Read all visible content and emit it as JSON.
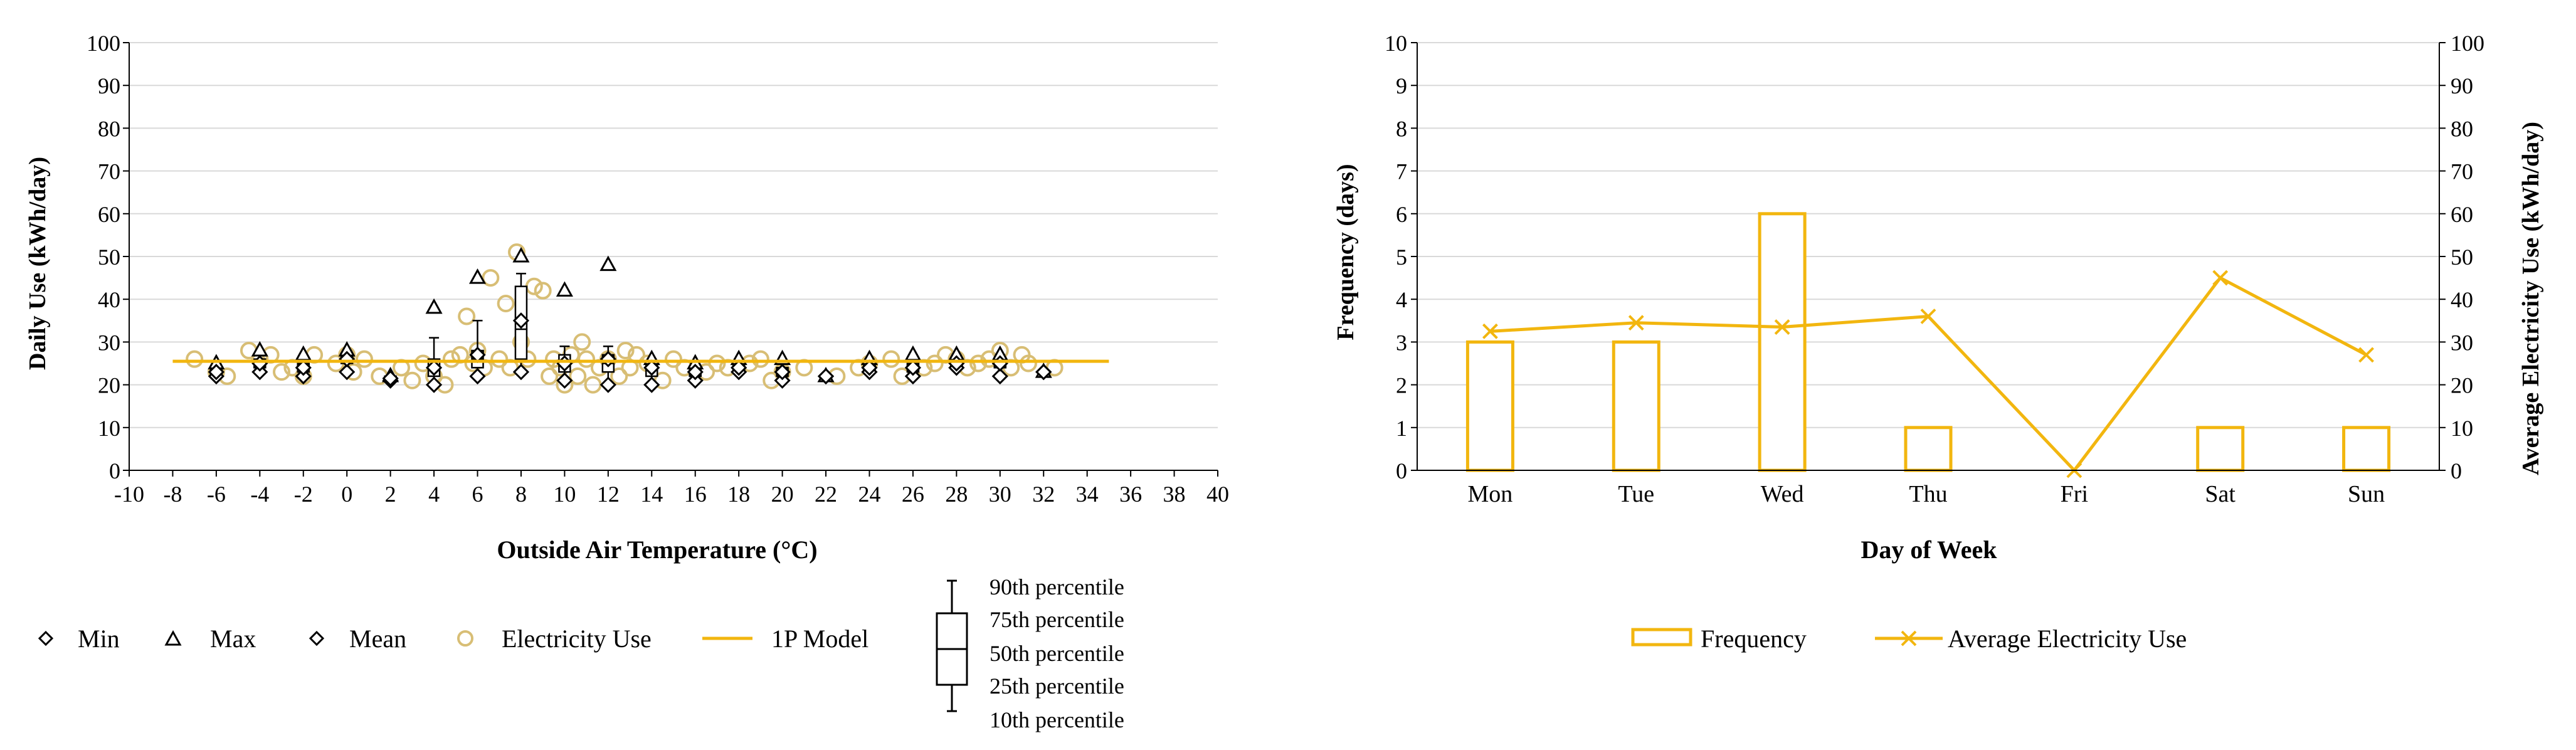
{
  "colors": {
    "accent": "#F2B60F",
    "marker_fill": "#D8BE75",
    "axis": "#000000",
    "grid": "#D9D9D9"
  },
  "chart_data": [
    {
      "type": "scatter",
      "title": "",
      "xlabel": "Outside Air Temperature (°C)",
      "ylabel": "Daily Use (kWh/day)",
      "xlim": [
        -10,
        40
      ],
      "ylim": [
        0,
        100
      ],
      "x_ticks": [
        -10,
        -8,
        -6,
        -4,
        -2,
        0,
        2,
        4,
        6,
        8,
        10,
        12,
        14,
        16,
        18,
        20,
        22,
        24,
        26,
        28,
        30,
        32,
        34,
        36,
        38,
        40
      ],
      "y_ticks": [
        0,
        10,
        20,
        30,
        40,
        50,
        60,
        70,
        80,
        90,
        100
      ],
      "grid": true,
      "legend": {
        "min": "Min",
        "max": "Max",
        "mean": "Mean",
        "electricity": "Electricity Use",
        "model": "1P Model",
        "percentiles": [
          "90th percentile",
          "75th percentile",
          "50th percentile",
          "25th percentile",
          "10th percentile"
        ]
      },
      "model_1p": {
        "x_start": -8,
        "x_end": 35,
        "y": 25.5
      },
      "electricity_use": [
        [
          -7,
          26
        ],
        [
          -6,
          23
        ],
        [
          -5.5,
          22
        ],
        [
          -4.5,
          28
        ],
        [
          -4,
          26
        ],
        [
          -3.5,
          27
        ],
        [
          -3,
          23
        ],
        [
          -2.5,
          24
        ],
        [
          -2,
          22
        ],
        [
          -1.5,
          27
        ],
        [
          -0.5,
          25
        ],
        [
          0,
          27
        ],
        [
          0.3,
          23
        ],
        [
          0.8,
          26
        ],
        [
          1.5,
          22
        ],
        [
          2.5,
          24
        ],
        [
          3,
          21
        ],
        [
          3.5,
          25
        ],
        [
          4,
          22
        ],
        [
          4.5,
          20
        ],
        [
          4.8,
          26
        ],
        [
          5.2,
          27
        ],
        [
          5.5,
          36
        ],
        [
          5.8,
          25
        ],
        [
          6,
          28
        ],
        [
          6.3,
          24
        ],
        [
          6.6,
          45
        ],
        [
          7,
          26
        ],
        [
          7.3,
          39
        ],
        [
          7.5,
          24
        ],
        [
          7.8,
          51
        ],
        [
          8,
          30
        ],
        [
          8.3,
          26
        ],
        [
          8.6,
          43
        ],
        [
          9,
          42
        ],
        [
          9.3,
          22
        ],
        [
          9.5,
          26
        ],
        [
          9.8,
          24
        ],
        [
          10,
          20
        ],
        [
          10.3,
          27
        ],
        [
          10.6,
          22
        ],
        [
          10.8,
          30
        ],
        [
          11,
          26
        ],
        [
          11.3,
          20
        ],
        [
          11.6,
          24
        ],
        [
          12,
          26
        ],
        [
          12.5,
          22
        ],
        [
          12.8,
          28
        ],
        [
          13,
          24
        ],
        [
          13.3,
          27
        ],
        [
          13.8,
          25
        ],
        [
          14.5,
          21
        ],
        [
          15,
          26
        ],
        [
          15.5,
          24
        ],
        [
          16.5,
          23
        ],
        [
          17,
          25
        ],
        [
          17.5,
          24
        ],
        [
          18.5,
          25
        ],
        [
          19,
          26
        ],
        [
          19.5,
          21
        ],
        [
          20,
          23
        ],
        [
          21,
          24
        ],
        [
          22.5,
          22
        ],
        [
          23.5,
          24
        ],
        [
          24,
          25
        ],
        [
          25,
          26
        ],
        [
          25.5,
          22
        ],
        [
          26.5,
          24
        ],
        [
          27,
          25
        ],
        [
          27.5,
          27
        ],
        [
          28,
          26
        ],
        [
          28.5,
          24
        ],
        [
          29,
          25
        ],
        [
          29.5,
          26
        ],
        [
          30,
          28
        ],
        [
          30.5,
          24
        ],
        [
          31,
          27
        ],
        [
          31.3,
          25
        ],
        [
          32.5,
          24
        ]
      ],
      "bins": [
        {
          "x": -6,
          "min": 22,
          "max": 25,
          "mean": 23,
          "p10": 22,
          "p25": 22.5,
          "p50": 23,
          "p75": 24,
          "p90": 25
        },
        {
          "x": -4,
          "min": 23,
          "max": 28,
          "mean": 25,
          "p10": 23,
          "p25": 24,
          "p50": 25,
          "p75": 26,
          "p90": 27
        },
        {
          "x": -2,
          "min": 22,
          "max": 27,
          "mean": 24,
          "p10": 22,
          "p25": 23,
          "p50": 24,
          "p75": 25,
          "p90": 26
        },
        {
          "x": 0,
          "min": 23,
          "max": 28,
          "mean": 26,
          "p10": 23,
          "p25": 25,
          "p50": 26,
          "p75": 27,
          "p90": 28
        },
        {
          "x": 2,
          "min": 21,
          "max": 22,
          "mean": 21.5,
          "p10": 21,
          "p25": 21,
          "p50": 21.5,
          "p75": 22,
          "p90": 22
        },
        {
          "x": 4,
          "min": 20,
          "max": 38,
          "mean": 24,
          "p10": 20,
          "p25": 22,
          "p50": 24,
          "p75": 26,
          "p90": 31
        },
        {
          "x": 6,
          "min": 22,
          "max": 45,
          "mean": 27,
          "p10": 22,
          "p25": 24,
          "p50": 26,
          "p75": 28,
          "p90": 35
        },
        {
          "x": 8,
          "min": 23,
          "max": 50,
          "mean": 35,
          "p10": 23,
          "p25": 26,
          "p50": 33,
          "p75": 43,
          "p90": 46
        },
        {
          "x": 10,
          "min": 21,
          "max": 42,
          "mean": 25,
          "p10": 21,
          "p25": 23,
          "p50": 25,
          "p75": 27,
          "p90": 29
        },
        {
          "x": 12,
          "min": 20,
          "max": 48,
          "mean": 26,
          "p10": 20,
          "p25": 23,
          "p50": 25,
          "p75": 27,
          "p90": 29
        },
        {
          "x": 14,
          "min": 20,
          "max": 26,
          "mean": 24,
          "p10": 20,
          "p25": 22,
          "p50": 24,
          "p75": 25,
          "p90": 26
        },
        {
          "x": 16,
          "min": 21,
          "max": 25,
          "mean": 23,
          "p10": 21,
          "p25": 22,
          "p50": 23,
          "p75": 24,
          "p90": 25
        },
        {
          "x": 18,
          "min": 23,
          "max": 26,
          "mean": 24,
          "p10": 23,
          "p25": 23.5,
          "p50": 24,
          "p75": 25,
          "p90": 26
        },
        {
          "x": 20,
          "min": 21,
          "max": 26,
          "mean": 23,
          "p10": 21,
          "p25": 22,
          "p50": 23,
          "p75": 24,
          "p90": 25
        },
        {
          "x": 22,
          "min": 22,
          "max": 22,
          "mean": 22,
          "p10": 22,
          "p25": 22,
          "p50": 22,
          "p75": 22,
          "p90": 22
        },
        {
          "x": 24,
          "min": 23,
          "max": 26,
          "mean": 24,
          "p10": 23,
          "p25": 23.5,
          "p50": 24,
          "p75": 25,
          "p90": 26
        },
        {
          "x": 26,
          "min": 22,
          "max": 27,
          "mean": 24,
          "p10": 22,
          "p25": 23,
          "p50": 24,
          "p75": 25,
          "p90": 26
        },
        {
          "x": 28,
          "min": 24,
          "max": 27,
          "mean": 25,
          "p10": 24,
          "p25": 24.5,
          "p50": 25,
          "p75": 26,
          "p90": 27
        },
        {
          "x": 30,
          "min": 22,
          "max": 27,
          "mean": 25,
          "p10": 22,
          "p25": 24,
          "p50": 25,
          "p75": 26,
          "p90": 27
        },
        {
          "x": 32,
          "min": 23,
          "max": 23,
          "mean": 23,
          "p10": 23,
          "p25": 23,
          "p50": 23,
          "p75": 23,
          "p90": 23
        }
      ]
    },
    {
      "type": "bar",
      "title": "",
      "xlabel": "Day of Week",
      "ylabel": "Frequency (days)",
      "y2label": "Average Electricity Use (kWh/day)",
      "categories": [
        "Mon",
        "Tue",
        "Wed",
        "Thu",
        "Fri",
        "Sat",
        "Sun"
      ],
      "ylim": [
        0,
        10
      ],
      "y2lim": [
        0,
        100
      ],
      "y_ticks": [
        0,
        1,
        2,
        3,
        4,
        5,
        6,
        7,
        8,
        9,
        10
      ],
      "y2_ticks": [
        0,
        10,
        20,
        30,
        40,
        50,
        60,
        70,
        80,
        90,
        100
      ],
      "grid": true,
      "series": [
        {
          "name": "Frequency",
          "type": "bar",
          "axis": "left",
          "values": [
            3,
            3,
            6,
            1,
            0,
            1,
            1
          ]
        },
        {
          "name": "Average Electricity Use",
          "type": "line",
          "axis": "right",
          "values": [
            32.5,
            34.5,
            33.5,
            36,
            0,
            45,
            27
          ]
        }
      ],
      "legend": {
        "frequency": "Frequency",
        "average": "Average Electricity Use"
      }
    }
  ]
}
